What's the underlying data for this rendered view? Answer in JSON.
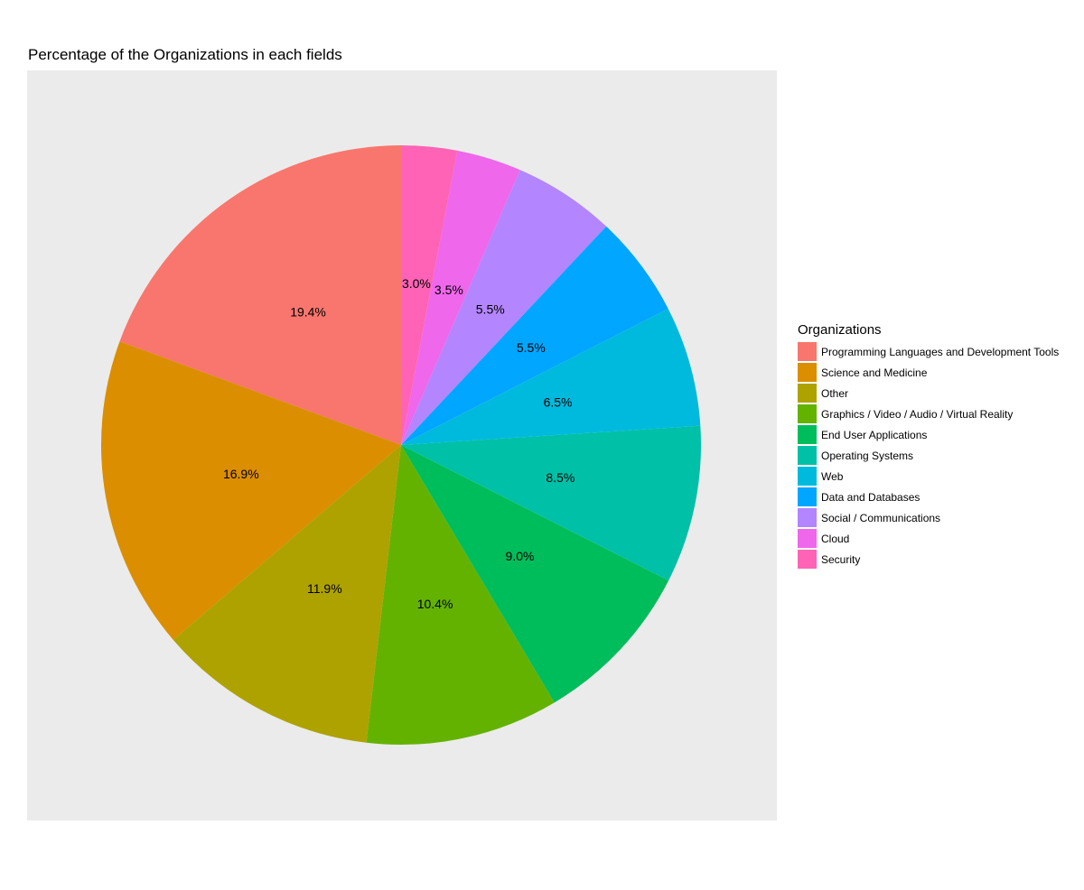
{
  "chart_data": {
    "type": "pie",
    "title": "Percentage of the Organizations in each fields",
    "legend_title": "Organizations",
    "legend_position": "right",
    "start_angle_deg": 0,
    "direction": "counterclockwise",
    "slices": [
      {
        "name": "Programming Languages and Development Tools",
        "value": 19.4,
        "label": "19.4%",
        "color": "#F8766D"
      },
      {
        "name": "Science and Medicine",
        "value": 16.9,
        "label": "16.9%",
        "color": "#DB8E00"
      },
      {
        "name": "Other",
        "value": 11.9,
        "label": "11.9%",
        "color": "#AEA200"
      },
      {
        "name": "Graphics / Video / Audio / Virtual Reality",
        "value": 10.4,
        "label": "10.4%",
        "color": "#64B200"
      },
      {
        "name": "End User Applications",
        "value": 9.0,
        "label": "9.0%",
        "color": "#00BD5C"
      },
      {
        "name": "Operating Systems",
        "value": 8.5,
        "label": "8.5%",
        "color": "#00C1A7"
      },
      {
        "name": "Web",
        "value": 6.5,
        "label": "6.5%",
        "color": "#00BADE"
      },
      {
        "name": "Data and Databases",
        "value": 5.5,
        "label": "5.5%",
        "color": "#00A6FF"
      },
      {
        "name": "Social / Communications",
        "value": 5.5,
        "label": "5.5%",
        "color": "#B385FF"
      },
      {
        "name": "Cloud",
        "value": 3.5,
        "label": "3.5%",
        "color": "#EF67EB"
      },
      {
        "name": "Security",
        "value": 3.0,
        "label": "3.0%",
        "color": "#FF63B6"
      }
    ]
  }
}
